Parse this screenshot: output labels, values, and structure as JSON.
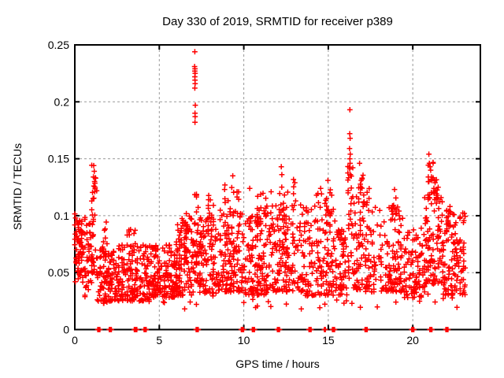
{
  "chart_data": {
    "type": "scatter",
    "title": "Day 330 of 2019, SRMTID for receiver p389",
    "x_axis": {
      "label": "GPS time / hours",
      "range": [
        0,
        24
      ],
      "ticks": [
        {
          "v": 0,
          "label": "0"
        },
        {
          "v": 5,
          "label": "5"
        },
        {
          "v": 10,
          "label": "10"
        },
        {
          "v": 15,
          "label": "15"
        },
        {
          "v": 20,
          "label": "20"
        }
      ]
    },
    "y_axis": {
      "label": "SRMTID / TECUs",
      "range": [
        0,
        0.25
      ],
      "ticks": [
        {
          "v": 0,
          "label": "0"
        },
        {
          "v": 0.05,
          "label": "0.05"
        },
        {
          "v": 0.1,
          "label": "0.1"
        },
        {
          "v": 0.15,
          "label": "0.15"
        },
        {
          "v": 0.2,
          "label": "0.2"
        },
        {
          "v": 0.25,
          "label": "0.25"
        }
      ]
    },
    "grid": {
      "shown": true,
      "dashed": true,
      "color": "#999999"
    },
    "legend": {
      "shown": false
    },
    "marker": {
      "glyph": "plus",
      "size": 7,
      "stroke_width": 1.5,
      "color": "#ff0000"
    },
    "colors": {
      "marker": "#ff0000",
      "axis": "#000000",
      "background": "#ffffff",
      "grid": "#999999"
    },
    "seed": 42,
    "outlier_points": [
      [
        7.1,
        0.244
      ],
      [
        7.09,
        0.231
      ],
      [
        7.11,
        0.229
      ],
      [
        7.1,
        0.227
      ],
      [
        7.12,
        0.225
      ],
      [
        7.1,
        0.222
      ],
      [
        7.11,
        0.219
      ],
      [
        7.12,
        0.216
      ],
      [
        7.1,
        0.212
      ],
      [
        7.13,
        0.197
      ],
      [
        7.11,
        0.19
      ],
      [
        7.12,
        0.187
      ],
      [
        7.11,
        0.182
      ],
      [
        16.28,
        0.193
      ],
      [
        16.27,
        0.172
      ],
      [
        16.29,
        0.168
      ],
      [
        16.26,
        0.159
      ],
      [
        16.3,
        0.154
      ],
      [
        16.28,
        0.15
      ],
      [
        16.29,
        0.146
      ],
      [
        16.27,
        0.141
      ],
      [
        16.31,
        0.136
      ],
      [
        16.85,
        0.146
      ],
      [
        16.95,
        0.131
      ],
      [
        20.95,
        0.154
      ],
      [
        20.98,
        0.146
      ],
      [
        21.02,
        0.143
      ],
      [
        21.06,
        0.14
      ],
      [
        20.92,
        0.134
      ],
      [
        21.1,
        0.131
      ],
      [
        21.32,
        0.129
      ],
      [
        21.25,
        0.124
      ],
      [
        1.12,
        0.144
      ],
      [
        1.15,
        0.139
      ],
      [
        1.1,
        0.134
      ],
      [
        1.17,
        0.13
      ],
      [
        1.13,
        0.126
      ],
      [
        1.18,
        0.121
      ],
      [
        1.08,
        0.115
      ],
      [
        12.22,
        0.143
      ],
      [
        12.25,
        0.136
      ],
      [
        9.35,
        0.135
      ],
      [
        8.88,
        0.127
      ],
      [
        9.6,
        0.121
      ],
      [
        10.35,
        0.124
      ],
      [
        10.82,
        0.117
      ],
      [
        11.62,
        0.121
      ],
      [
        13.02,
        0.129
      ],
      [
        14.98,
        0.131
      ],
      [
        14.55,
        0.124
      ],
      [
        15.2,
        0.118
      ],
      [
        18.92,
        0.123
      ],
      [
        22.2,
        0.108
      ],
      [
        22.25,
        0.103
      ]
    ],
    "zero_line_clusters": [
      {
        "t": 1.42,
        "n": 6
      },
      {
        "t": 2.1,
        "n": 6
      },
      {
        "t": 3.55,
        "n": 2
      },
      {
        "t": 3.64,
        "n": 2
      },
      {
        "t": 4.16,
        "n": 6
      },
      {
        "t": 7.24,
        "n": 6
      },
      {
        "t": 9.88,
        "n": 2
      },
      {
        "t": 9.96,
        "n": 2
      },
      {
        "t": 10.57,
        "n": 6
      },
      {
        "t": 12.05,
        "n": 6
      },
      {
        "t": 13.92,
        "n": 6
      },
      {
        "t": 14.8,
        "n": 2
      },
      {
        "t": 15.31,
        "n": 6
      },
      {
        "t": 17.24,
        "n": 6
      },
      {
        "t": 20.0,
        "n": 6
      },
      {
        "t": 21.07,
        "n": 6
      },
      {
        "t": 22.02,
        "n": 6
      }
    ],
    "density_segments": [
      {
        "t0": 0.0,
        "t1": 0.6,
        "lo": 0.04,
        "hi": 0.102,
        "n": 55,
        "skew": 1.0
      },
      {
        "t0": 0.05,
        "t1": 0.5,
        "lo": 0.06,
        "hi": 0.09,
        "n": 25,
        "skew": 0.8
      },
      {
        "t0": 0.6,
        "t1": 1.05,
        "lo": 0.035,
        "hi": 0.095,
        "n": 40,
        "skew": 1.2
      },
      {
        "t0": 1.0,
        "t1": 1.3,
        "lo": 0.05,
        "hi": 0.145,
        "n": 30,
        "skew": 1.6
      },
      {
        "t0": 1.3,
        "t1": 2.3,
        "lo": 0.025,
        "hi": 0.07,
        "n": 90,
        "skew": 1.3
      },
      {
        "t0": 1.6,
        "t1": 2.0,
        "lo": 0.06,
        "hi": 0.1,
        "n": 12,
        "skew": 1.2
      },
      {
        "t0": 2.3,
        "t1": 4.5,
        "lo": 0.025,
        "hi": 0.075,
        "n": 200,
        "skew": 1.4
      },
      {
        "t0": 2.9,
        "t1": 3.6,
        "lo": 0.07,
        "hi": 0.088,
        "n": 10,
        "skew": 1.0
      },
      {
        "t0": 4.5,
        "t1": 6.0,
        "lo": 0.028,
        "hi": 0.075,
        "n": 150,
        "skew": 1.3
      },
      {
        "t0": 6.0,
        "t1": 7.05,
        "lo": 0.03,
        "hi": 0.095,
        "n": 110,
        "skew": 1.4
      },
      {
        "t0": 6.3,
        "t1": 6.95,
        "lo": 0.085,
        "hi": 0.106,
        "n": 12,
        "skew": 1.0
      },
      {
        "t0": 7.0,
        "t1": 7.35,
        "lo": 0.04,
        "hi": 0.12,
        "n": 35,
        "skew": 1.2
      },
      {
        "t0": 7.35,
        "t1": 8.5,
        "lo": 0.032,
        "hi": 0.1,
        "n": 115,
        "skew": 1.5
      },
      {
        "t0": 7.8,
        "t1": 8.3,
        "lo": 0.09,
        "hi": 0.118,
        "n": 10,
        "skew": 1.0
      },
      {
        "t0": 8.5,
        "t1": 10.0,
        "lo": 0.033,
        "hi": 0.105,
        "n": 135,
        "skew": 1.5
      },
      {
        "t0": 8.8,
        "t1": 9.7,
        "lo": 0.1,
        "hi": 0.128,
        "n": 14,
        "skew": 1.0
      },
      {
        "t0": 10.0,
        "t1": 11.5,
        "lo": 0.03,
        "hi": 0.105,
        "n": 140,
        "skew": 1.5
      },
      {
        "t0": 10.6,
        "t1": 11.4,
        "lo": 0.095,
        "hi": 0.12,
        "n": 12,
        "skew": 1.0
      },
      {
        "t0": 11.5,
        "t1": 13.5,
        "lo": 0.033,
        "hi": 0.11,
        "n": 165,
        "skew": 1.5
      },
      {
        "t0": 12.0,
        "t1": 13.1,
        "lo": 0.1,
        "hi": 0.132,
        "n": 16,
        "skew": 1.0
      },
      {
        "t0": 13.5,
        "t1": 15.5,
        "lo": 0.03,
        "hi": 0.11,
        "n": 150,
        "skew": 1.5
      },
      {
        "t0": 14.3,
        "t1": 15.3,
        "lo": 0.1,
        "hi": 0.128,
        "n": 14,
        "skew": 1.0
      },
      {
        "t0": 15.5,
        "t1": 16.1,
        "lo": 0.03,
        "hi": 0.088,
        "n": 55,
        "skew": 1.3
      },
      {
        "t0": 16.15,
        "t1": 16.45,
        "lo": 0.045,
        "hi": 0.15,
        "n": 30,
        "skew": 1.3
      },
      {
        "t0": 16.5,
        "t1": 17.5,
        "lo": 0.035,
        "hi": 0.125,
        "n": 90,
        "skew": 1.5
      },
      {
        "t0": 16.75,
        "t1": 17.1,
        "lo": 0.11,
        "hi": 0.14,
        "n": 10,
        "skew": 1.0
      },
      {
        "t0": 17.5,
        "t1": 19.5,
        "lo": 0.033,
        "hi": 0.108,
        "n": 140,
        "skew": 1.5
      },
      {
        "t0": 18.6,
        "t1": 19.1,
        "lo": 0.095,
        "hi": 0.122,
        "n": 12,
        "skew": 1.0
      },
      {
        "t0": 19.5,
        "t1": 20.7,
        "lo": 0.028,
        "hi": 0.09,
        "n": 95,
        "skew": 1.3
      },
      {
        "t0": 20.7,
        "t1": 21.8,
        "lo": 0.04,
        "hi": 0.135,
        "n": 105,
        "skew": 1.4
      },
      {
        "t0": 20.85,
        "t1": 21.45,
        "lo": 0.11,
        "hi": 0.148,
        "n": 16,
        "skew": 1.0
      },
      {
        "t0": 21.8,
        "t1": 23.1,
        "lo": 0.03,
        "hi": 0.105,
        "n": 115,
        "skew": 1.4
      },
      {
        "t0": 22.0,
        "t1": 22.35,
        "lo": 0.085,
        "hi": 0.108,
        "n": 10,
        "skew": 1.0
      },
      {
        "t0": 0.3,
        "t1": 23.0,
        "lo": 0.018,
        "hi": 0.034,
        "n": 45,
        "skew": 1.0
      }
    ]
  }
}
